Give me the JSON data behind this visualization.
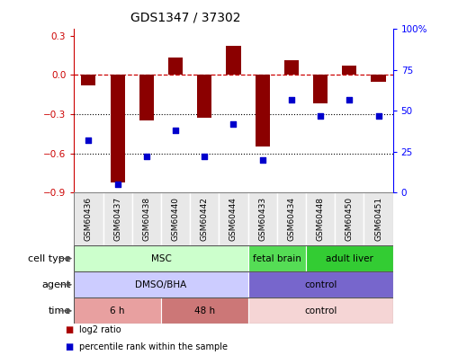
{
  "title": "GDS1347 / 37302",
  "samples": [
    "GSM60436",
    "GSM60437",
    "GSM60438",
    "GSM60440",
    "GSM60442",
    "GSM60444",
    "GSM60433",
    "GSM60434",
    "GSM60448",
    "GSM60450",
    "GSM60451"
  ],
  "log2_ratio": [
    -0.08,
    -0.82,
    -0.35,
    0.13,
    -0.33,
    0.22,
    -0.55,
    0.11,
    -0.22,
    0.07,
    -0.05
  ],
  "percentile_rank": [
    32,
    5,
    22,
    38,
    22,
    42,
    20,
    57,
    47,
    57,
    47
  ],
  "ylim_left": [
    -0.9,
    0.35
  ],
  "ylim_right": [
    0,
    100
  ],
  "yticks_left": [
    0.3,
    0.0,
    -0.3,
    -0.6,
    -0.9
  ],
  "yticks_right": [
    100,
    75,
    50,
    25,
    0
  ],
  "bar_color": "#8B0000",
  "dot_color": "#0000cc",
  "hline_color": "#cc0000",
  "dotted_lines": [
    -0.3,
    -0.6
  ],
  "cell_type_groups": [
    {
      "label": "MSC",
      "start": 0,
      "end": 5,
      "color": "#ccffcc"
    },
    {
      "label": "fetal brain",
      "start": 6,
      "end": 7,
      "color": "#55dd55"
    },
    {
      "label": "adult liver",
      "start": 8,
      "end": 10,
      "color": "#33cc33"
    }
  ],
  "agent_groups": [
    {
      "label": "DMSO/BHA",
      "start": 0,
      "end": 5,
      "color": "#ccccff"
    },
    {
      "label": "control",
      "start": 6,
      "end": 10,
      "color": "#7766cc"
    }
  ],
  "time_groups": [
    {
      "label": "6 h",
      "start": 0,
      "end": 2,
      "color": "#e8a0a0"
    },
    {
      "label": "48 h",
      "start": 3,
      "end": 5,
      "color": "#cc7777"
    },
    {
      "label": "control",
      "start": 6,
      "end": 10,
      "color": "#f5d5d5"
    }
  ],
  "row_labels": [
    "cell type",
    "agent",
    "time"
  ],
  "legend_square_color_red": "#aa0000",
  "legend_square_color_blue": "#0000cc"
}
